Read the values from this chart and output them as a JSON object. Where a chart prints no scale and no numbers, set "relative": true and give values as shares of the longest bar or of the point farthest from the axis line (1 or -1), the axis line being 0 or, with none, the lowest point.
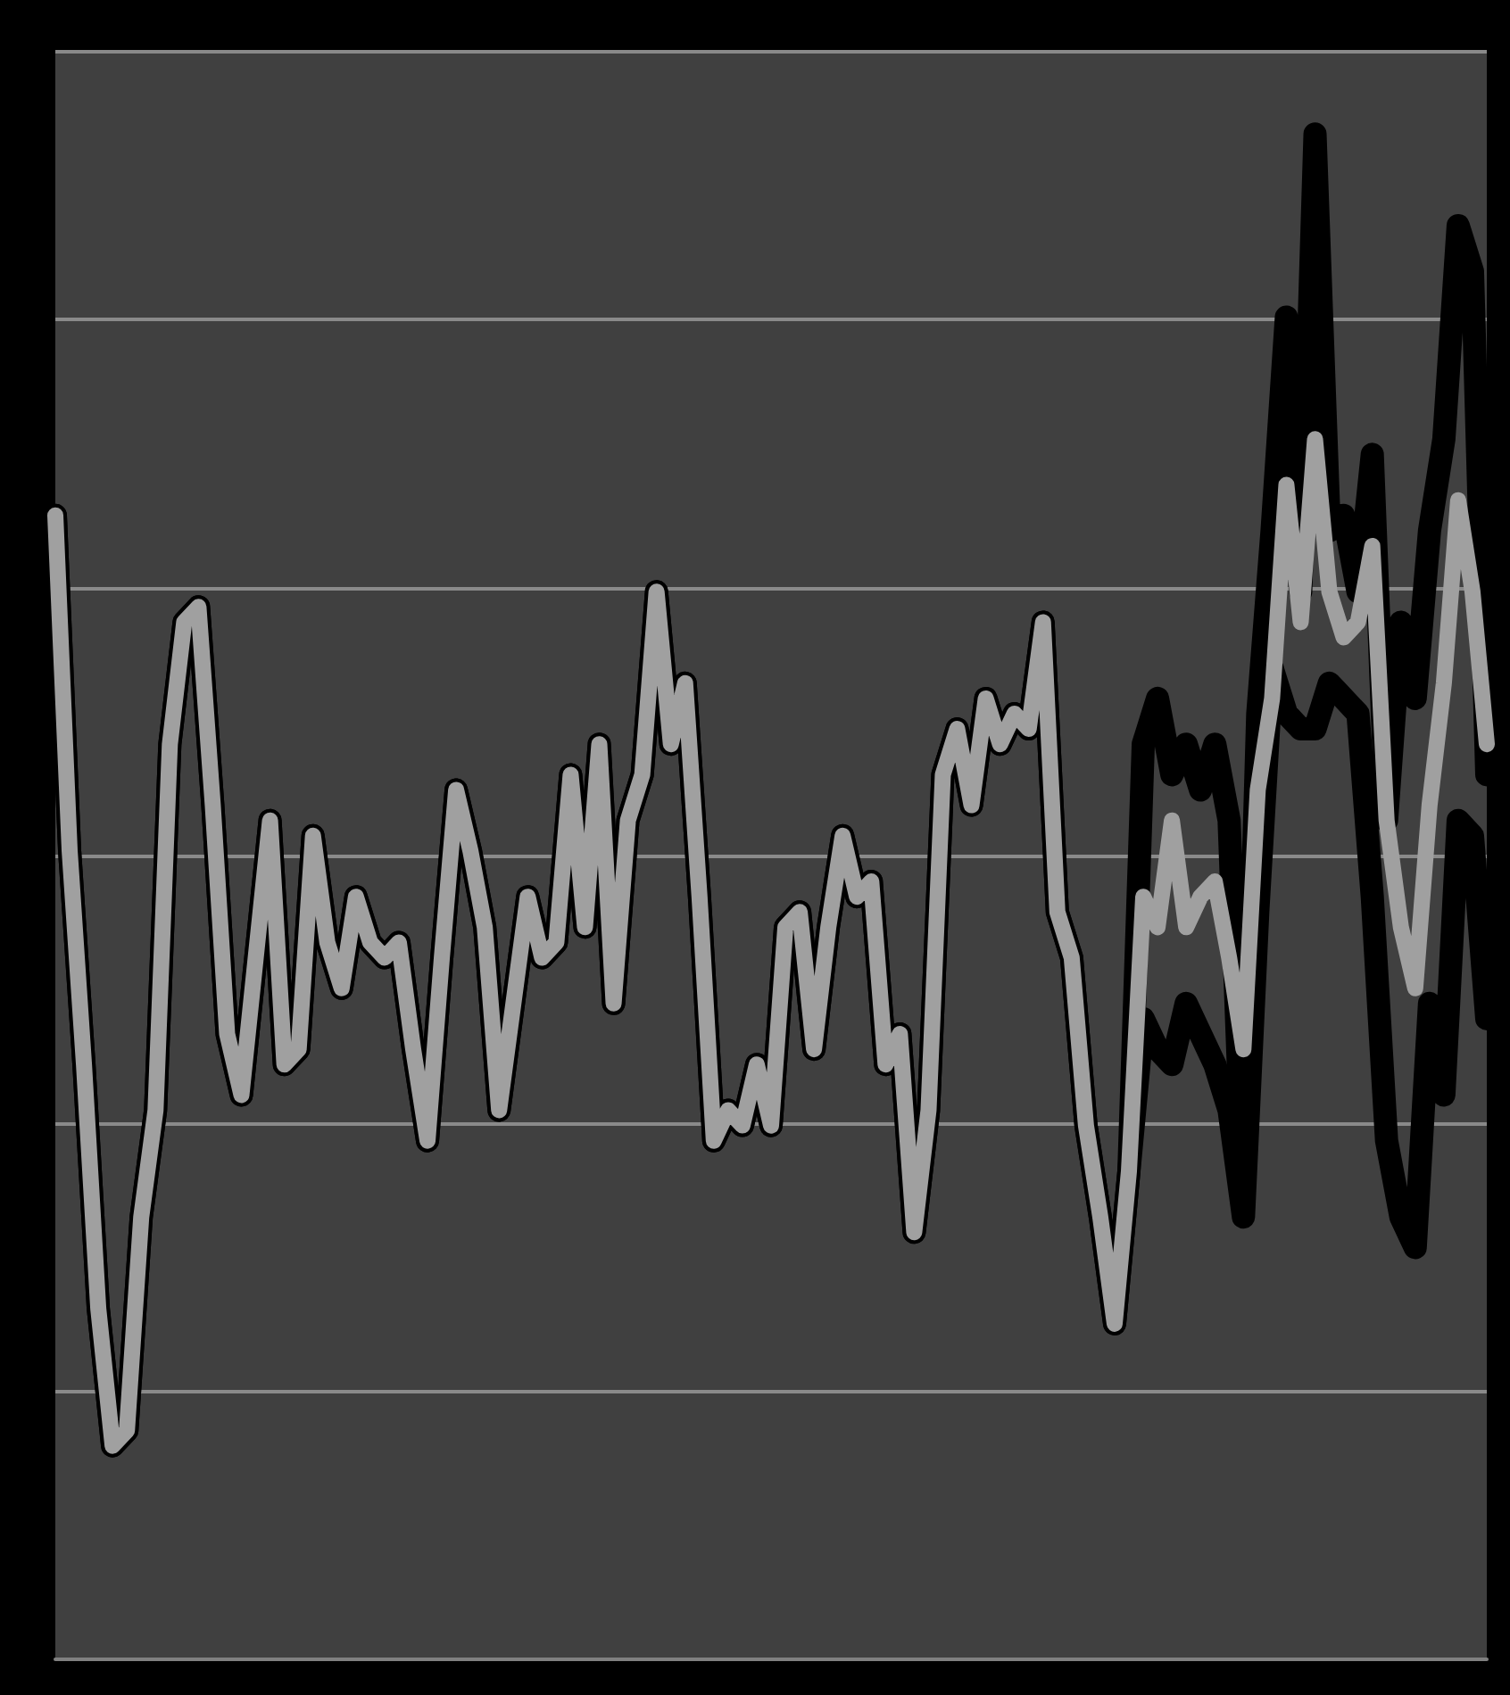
{
  "chart_data": {
    "type": "line",
    "relative": true,
    "grid": "y",
    "line_style": "solid",
    "categories": [
      null,
      null,
      null,
      null,
      null,
      null,
      null,
      null,
      null,
      null,
      null,
      null,
      null,
      null,
      null,
      null,
      null,
      null,
      null,
      null,
      null,
      null,
      null,
      null,
      null,
      null,
      null,
      null,
      null,
      null,
      null,
      null,
      null,
      null,
      null,
      null,
      null,
      null,
      null,
      null,
      null,
      null,
      null,
      null,
      null,
      null,
      null,
      null,
      null,
      null,
      null,
      null,
      null,
      null,
      null,
      null,
      null,
      null,
      null,
      null,
      null,
      null,
      null,
      null,
      null,
      null,
      null,
      null,
      null,
      null,
      null,
      null,
      null,
      null,
      null,
      null,
      null,
      null,
      null,
      null,
      null,
      null,
      null,
      null,
      null,
      null,
      null,
      null,
      null,
      null,
      null,
      null,
      null,
      null,
      null,
      null,
      null,
      null,
      null,
      null,
      null
    ],
    "series": [
      {
        "color": "#000000",
        "values": [
          0.75,
          0.53,
          0.39,
          0.23,
          0.14,
          0.15,
          0.29,
          0.36,
          0.6,
          0.68,
          0.69,
          0.56,
          0.41,
          0.37,
          0.46,
          0.55,
          0.39,
          0.4,
          0.54,
          0.47,
          0.44,
          0.5,
          0.47,
          0.46,
          0.47,
          0.4,
          0.34,
          0.46,
          0.57,
          0.53,
          0.48,
          0.36,
          0.43,
          0.5,
          0.46,
          0.47,
          0.58,
          0.48,
          0.6,
          0.43,
          0.55,
          0.58,
          0.7,
          0.6,
          0.64,
          0.5,
          0.34,
          0.36,
          0.35,
          0.39,
          0.35,
          0.48,
          0.49,
          0.4,
          0.48,
          0.54,
          0.5,
          0.51,
          0.39,
          0.41,
          0.28,
          0.36,
          0.58,
          0.61,
          0.56,
          0.63,
          0.6,
          0.62,
          0.61,
          0.68,
          0.49,
          0.46,
          0.35,
          0.29,
          0.22,
          0.32,
          0.6,
          0.63,
          0.58,
          0.6,
          0.57,
          0.6,
          0.55,
          0.3,
          0.62,
          0.74,
          0.88,
          0.7,
          1.0,
          0.74,
          0.75,
          0.7,
          0.79,
          0.55,
          0.68,
          0.63,
          0.74,
          0.8,
          0.94,
          0.91,
          0.58
        ]
      },
      {
        "color": "#000000",
        "values": [
          0.75,
          0.53,
          0.39,
          0.23,
          0.14,
          0.15,
          0.29,
          0.36,
          0.6,
          0.68,
          0.69,
          0.56,
          0.41,
          0.37,
          0.46,
          0.55,
          0.39,
          0.4,
          0.54,
          0.47,
          0.44,
          0.5,
          0.47,
          0.46,
          0.47,
          0.4,
          0.34,
          0.46,
          0.57,
          0.53,
          0.48,
          0.36,
          0.43,
          0.5,
          0.46,
          0.47,
          0.58,
          0.48,
          0.6,
          0.43,
          0.55,
          0.58,
          0.7,
          0.6,
          0.64,
          0.5,
          0.34,
          0.36,
          0.35,
          0.39,
          0.35,
          0.48,
          0.49,
          0.4,
          0.48,
          0.54,
          0.5,
          0.51,
          0.39,
          0.41,
          0.28,
          0.36,
          0.58,
          0.61,
          0.56,
          0.63,
          0.6,
          0.62,
          0.61,
          0.68,
          0.49,
          0.46,
          0.35,
          0.29,
          0.22,
          0.32,
          0.42,
          0.4,
          0.39,
          0.43,
          0.41,
          0.39,
          0.36,
          0.29,
          0.49,
          0.65,
          0.62,
          0.61,
          0.61,
          0.64,
          0.63,
          0.62,
          0.5,
          0.34,
          0.29,
          0.27,
          0.43,
          0.37,
          0.55,
          0.54,
          0.42
        ]
      },
      {
        "color": "#a0a0a0",
        "values": [
          0.75,
          0.53,
          0.39,
          0.23,
          0.14,
          0.15,
          0.29,
          0.36,
          0.6,
          0.68,
          0.69,
          0.56,
          0.41,
          0.37,
          0.46,
          0.55,
          0.39,
          0.4,
          0.54,
          0.47,
          0.44,
          0.5,
          0.47,
          0.46,
          0.47,
          0.4,
          0.34,
          0.46,
          0.57,
          0.53,
          0.48,
          0.36,
          0.43,
          0.5,
          0.46,
          0.47,
          0.58,
          0.48,
          0.6,
          0.43,
          0.55,
          0.58,
          0.7,
          0.6,
          0.64,
          0.5,
          0.34,
          0.36,
          0.35,
          0.39,
          0.35,
          0.48,
          0.49,
          0.4,
          0.48,
          0.54,
          0.5,
          0.51,
          0.39,
          0.41,
          0.28,
          0.36,
          0.58,
          0.61,
          0.56,
          0.63,
          0.6,
          0.62,
          0.61,
          0.68,
          0.49,
          0.46,
          0.35,
          0.29,
          0.22,
          0.32,
          0.5,
          0.48,
          0.55,
          0.48,
          0.5,
          0.51,
          0.46,
          0.4,
          0.57,
          0.63,
          0.77,
          0.68,
          0.8,
          0.7,
          0.67,
          0.68,
          0.73,
          0.55,
          0.48,
          0.44,
          0.56,
          0.64,
          0.76,
          0.7,
          0.6
        ]
      }
    ]
  }
}
